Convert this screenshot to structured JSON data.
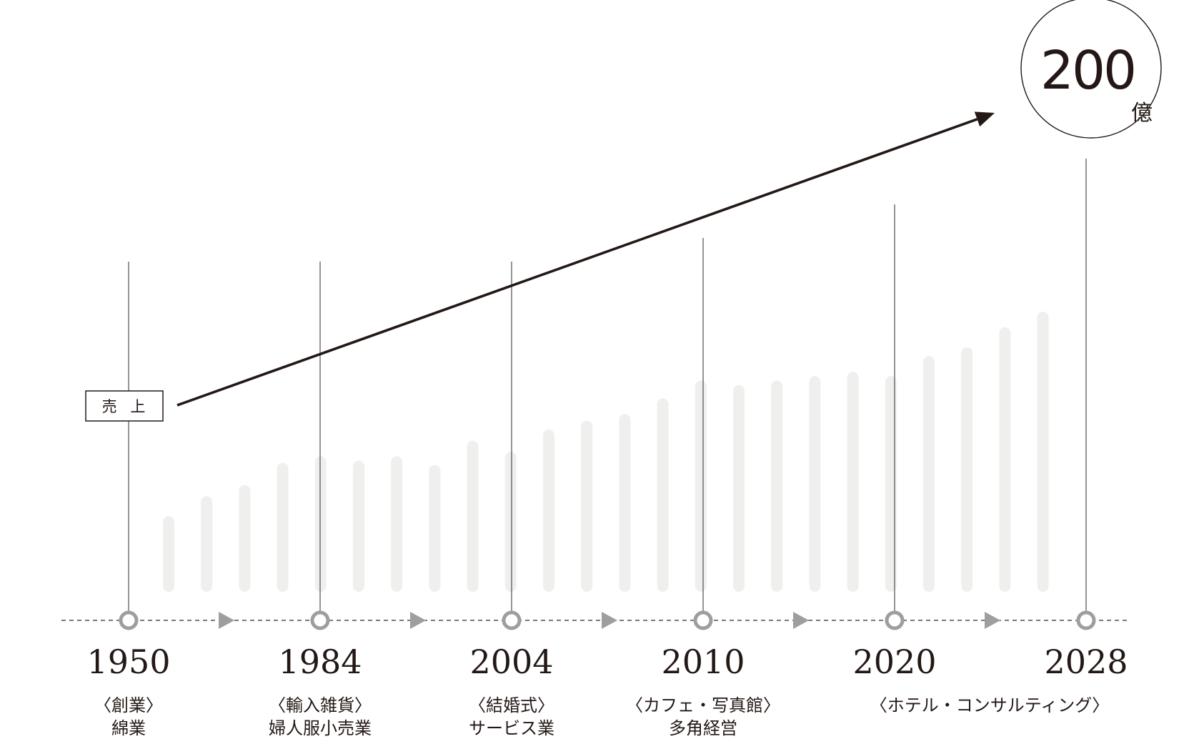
{
  "chart_data": {
    "type": "bar",
    "title": "",
    "xlabel": "",
    "ylabel": "",
    "series_label": "売 上",
    "peak": {
      "value": "200",
      "unit": "億"
    },
    "milestones": [
      {
        "year": "1950",
        "era": "〈創業〉",
        "desc": "綿業"
      },
      {
        "year": "1984",
        "era": "〈輸入雑貨〉",
        "desc": "婦人服小売業"
      },
      {
        "year": "2004",
        "era": "〈結婚式〉",
        "desc": "サービス業"
      },
      {
        "year": "2010",
        "era": "〈カフェ・写真館〉",
        "desc": "多角経営"
      },
      {
        "year": "2020",
        "era": "〈ホテル・コンサルティング〉",
        "desc": ""
      },
      {
        "year": "2028",
        "era": "",
        "desc": ""
      }
    ],
    "bars": [
      34,
      43,
      48,
      58,
      61,
      59,
      61,
      57,
      68,
      63,
      73,
      77,
      80,
      87,
      95,
      93,
      95,
      97,
      99,
      97,
      106,
      110,
      119,
      126
    ],
    "bar_max": 200,
    "colors": {
      "bar": "#efefed",
      "axis": "#4d4d4d",
      "marker": "#9e9e9e",
      "trend": "#231815",
      "text": "#231815"
    }
  }
}
